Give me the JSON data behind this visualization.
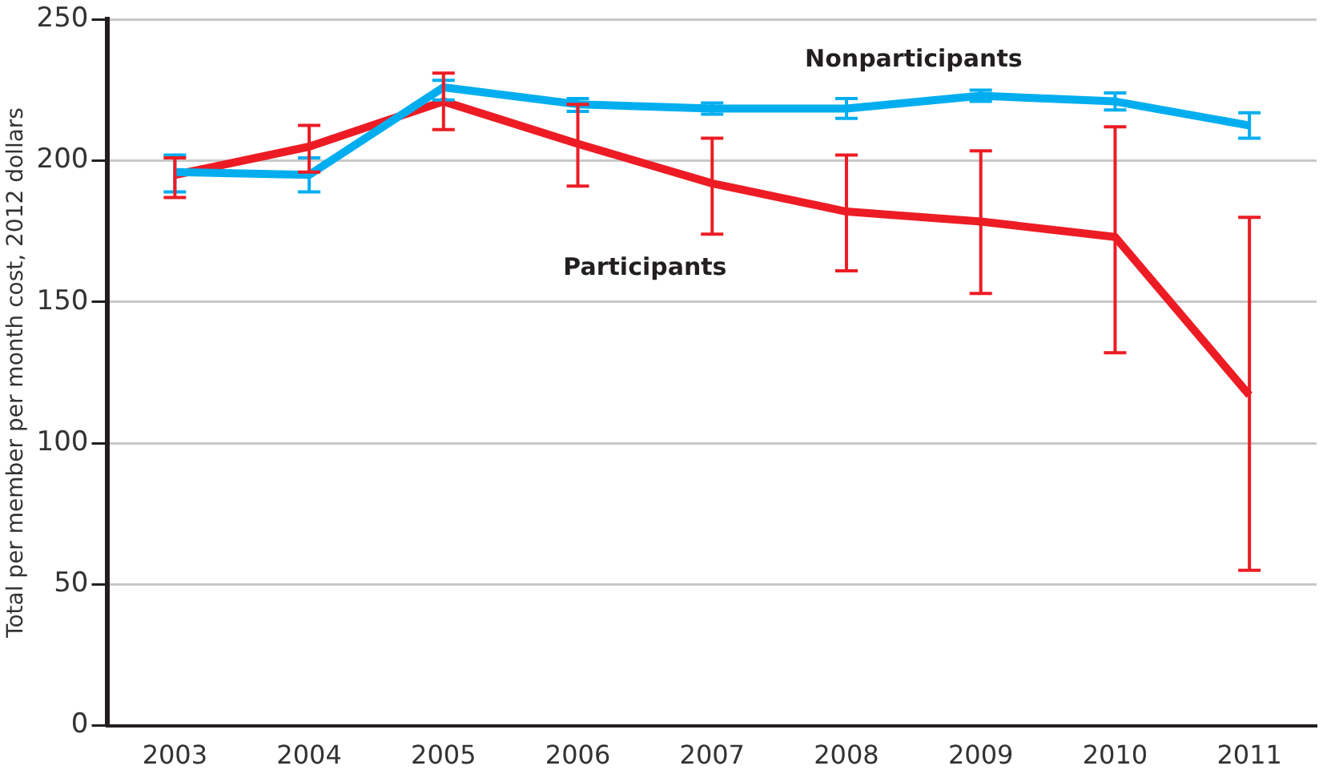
{
  "chart_data": {
    "type": "line",
    "ylabel": "Total per member per month cost, 2012 dollars",
    "categories": [
      "2003",
      "2004",
      "2005",
      "2006",
      "2007",
      "2008",
      "2009",
      "2010",
      "2011"
    ],
    "ylim": [
      0,
      250
    ],
    "yticks": [
      0,
      50,
      100,
      150,
      200,
      250
    ],
    "grid": "y",
    "legend": false,
    "marker": "none",
    "line_style": "solid",
    "series": [
      {
        "name": "Nonparticipants",
        "color": "#00aeef",
        "values": [
          196,
          195,
          226,
          220,
          218.5,
          218.5,
          223,
          221,
          212.5
        ],
        "errors": [
          [
            189,
            202
          ],
          [
            189,
            201
          ],
          [
            221.5,
            228.5
          ],
          [
            217.5,
            222
          ],
          [
            216.5,
            220.5
          ],
          [
            215,
            222
          ],
          [
            221,
            225
          ],
          [
            218,
            224
          ],
          [
            208,
            217
          ]
        ]
      },
      {
        "name": "Participants",
        "color": "#ed1c24",
        "values": [
          195,
          205,
          221,
          206,
          192,
          182,
          178.5,
          173,
          117
        ],
        "errors": [
          [
            187,
            201
          ],
          [
            196,
            212.5
          ],
          [
            211,
            231
          ],
          [
            191,
            220
          ],
          [
            174,
            208
          ],
          [
            161,
            202
          ],
          [
            153,
            203.5
          ],
          [
            132,
            212
          ],
          [
            55,
            180
          ]
        ]
      }
    ]
  }
}
